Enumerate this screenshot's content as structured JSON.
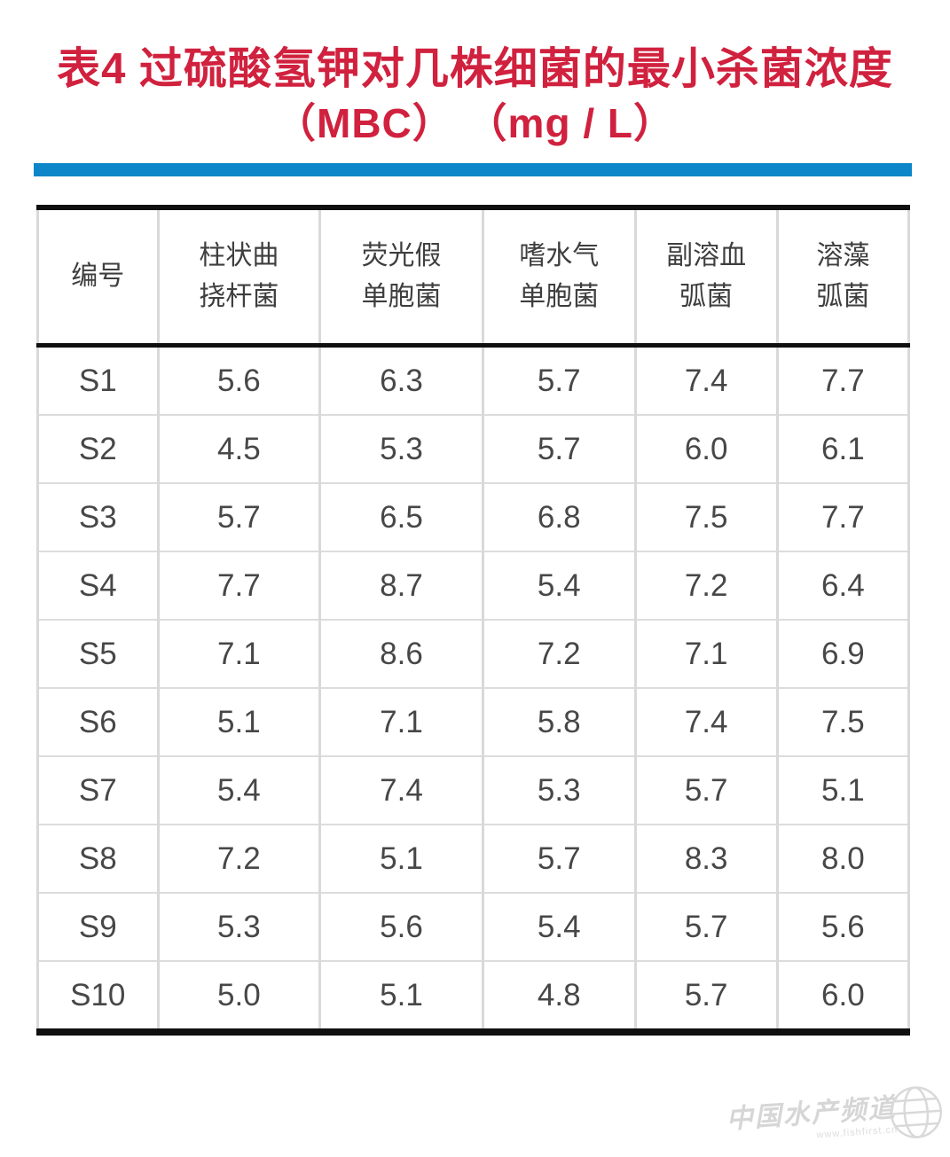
{
  "title": {
    "line1": "表4 过硫酸氢钾对几株细菌的最小杀菌浓度",
    "line2": "（MBC） （mg / L）"
  },
  "colors": {
    "title_red": "#d0213e",
    "bar_blue": "#0c86c8",
    "border_black": "#101010",
    "grid_gray": "#d9d9d9",
    "cell_text": "#474747",
    "watermark_gray": "#c9c9c9"
  },
  "table": {
    "columns": [
      {
        "lines": [
          "编号"
        ]
      },
      {
        "lines": [
          "柱状曲",
          "挠杆菌"
        ]
      },
      {
        "lines": [
          "荧光假",
          "单胞菌"
        ]
      },
      {
        "lines": [
          "嗜水气",
          "单胞菌"
        ]
      },
      {
        "lines": [
          "副溶血",
          "弧菌"
        ]
      },
      {
        "lines": [
          "溶藻",
          "弧菌"
        ]
      }
    ],
    "rows": [
      {
        "id": "S1",
        "values": [
          "5.6",
          "6.3",
          "5.7",
          "7.4",
          "7.7"
        ]
      },
      {
        "id": "S2",
        "values": [
          "4.5",
          "5.3",
          "5.7",
          "6.0",
          "6.1"
        ]
      },
      {
        "id": "S3",
        "values": [
          "5.7",
          "6.5",
          "6.8",
          "7.5",
          "7.7"
        ]
      },
      {
        "id": "S4",
        "values": [
          "7.7",
          "8.7",
          "5.4",
          "7.2",
          "6.4"
        ]
      },
      {
        "id": "S5",
        "values": [
          "7.1",
          "8.6",
          "7.2",
          "7.1",
          "6.9"
        ]
      },
      {
        "id": "S6",
        "values": [
          "5.1",
          "7.1",
          "5.8",
          "7.4",
          "7.5"
        ]
      },
      {
        "id": "S7",
        "values": [
          "5.4",
          "7.4",
          "5.3",
          "5.7",
          "5.1"
        ]
      },
      {
        "id": "S8",
        "values": [
          "7.2",
          "5.1",
          "5.7",
          "8.3",
          "8.0"
        ]
      },
      {
        "id": "S9",
        "values": [
          "5.3",
          "5.6",
          "5.4",
          "5.7",
          "5.6"
        ]
      },
      {
        "id": "S10",
        "values": [
          "5.0",
          "5.1",
          "4.8",
          "5.7",
          "6.0"
        ]
      }
    ]
  },
  "watermark": {
    "text": "中国水产频道",
    "url": "www.fishfirst.cn"
  }
}
